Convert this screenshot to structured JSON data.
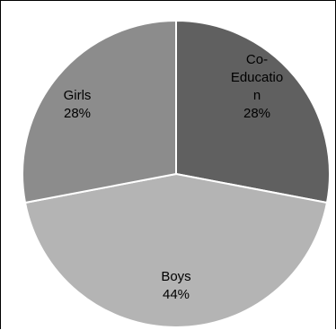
{
  "chart_data": {
    "type": "pie",
    "slices": [
      {
        "label_lines": [
          "Co-",
          "Educatio",
          "n"
        ],
        "percent_text": "28%",
        "value": 28,
        "color": "#606060"
      },
      {
        "label_lines": [
          "Boys"
        ],
        "percent_text": "44%",
        "value": 44,
        "color": "#b4b4b4"
      },
      {
        "label_lines": [
          "Girls"
        ],
        "percent_text": "28%",
        "value": 28,
        "color": "#8c8c8c"
      }
    ]
  }
}
